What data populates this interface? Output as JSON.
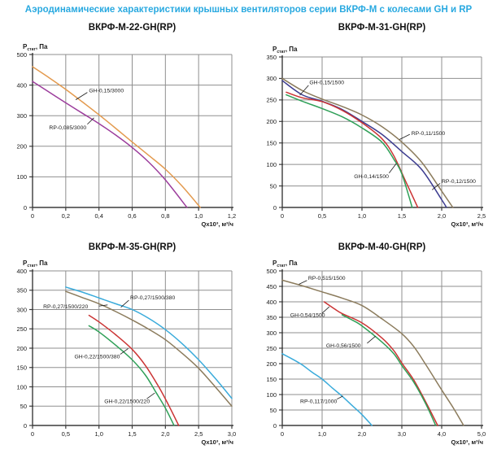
{
  "page": {
    "title": "Аэродинамические характеристики крышных вентиляторов серии ВКРФ-М с колесами GH и RP"
  },
  "colors": {
    "title_blue": "#29a9e0",
    "grid": "#8f8f8f",
    "axis": "#3c3c3c",
    "text": "#1a1a1a",
    "orange": "#e39a4e",
    "purple": "#9c3d9c",
    "brown": "#8b7b5c",
    "navy": "#3c3c90",
    "red": "#cb3434",
    "green": "#2fa058",
    "cyan": "#3aabdb"
  },
  "chart_data": [
    {
      "type": "line",
      "title": "ВКРФ-М-22-GH(RP)",
      "ylabel": "Рстат, Па",
      "ylabel_parts": {
        "main": "Р",
        "sub": "стат",
        "rest": ", Па"
      },
      "xlabel": "Qx10³, м³/ч",
      "xlim": [
        0,
        1.2
      ],
      "ylim": [
        0,
        500
      ],
      "grid": true,
      "xticks": [
        [
          0,
          "0"
        ],
        [
          0.2,
          "0,2"
        ],
        [
          0.4,
          "0,4"
        ],
        [
          0.6,
          "0,6"
        ],
        [
          0.8,
          "0,8"
        ],
        [
          1.0,
          "1,0"
        ],
        [
          1.2,
          "1,2"
        ]
      ],
      "yticks": [
        0,
        100,
        200,
        300,
        400,
        500
      ],
      "series": [
        {
          "name": "GH-0,15/3000",
          "color": "#e39a4e",
          "points": [
            [
              0,
              460
            ],
            [
              0.1,
              424
            ],
            [
              0.2,
              386
            ],
            [
              0.3,
              345
            ],
            [
              0.4,
              303
            ],
            [
              0.5,
              259
            ],
            [
              0.6,
              214
            ],
            [
              0.7,
              170
            ],
            [
              0.8,
              125
            ],
            [
              0.9,
              70
            ],
            [
              1.01,
              0
            ]
          ]
        },
        {
          "name": "RP-0,085/3000",
          "color": "#9c3d9c",
          "points": [
            [
              0,
              412
            ],
            [
              0.1,
              377
            ],
            [
              0.2,
              342
            ],
            [
              0.3,
              308
            ],
            [
              0.4,
              274
            ],
            [
              0.5,
              237
            ],
            [
              0.6,
              196
            ],
            [
              0.7,
              148
            ],
            [
              0.8,
              90
            ],
            [
              0.93,
              0
            ]
          ]
        }
      ],
      "annotations": [
        {
          "text": "GH-0,15/3000",
          "tx": 0.34,
          "ty": 383,
          "leader": [
            [
              0.33,
              376
            ],
            [
              0.26,
              352
            ]
          ]
        },
        {
          "text": "RP-0,085/3000",
          "tx": 0.1,
          "ty": 262,
          "leader": [
            [
              0.33,
              272
            ],
            [
              0.37,
              293
            ]
          ]
        }
      ]
    },
    {
      "type": "line",
      "title": "ВКРФ-М-31-GH(RP)",
      "ylabel": "Рстат, Па",
      "ylabel_parts": {
        "main": "Р",
        "sub": "стат",
        "rest": ", Па"
      },
      "xlabel": "Qx10³, м³/ч",
      "xlim": [
        0,
        2.5
      ],
      "ylim": [
        0,
        350
      ],
      "grid": true,
      "xticks": [
        [
          0,
          "0"
        ],
        [
          0.5,
          "0,5"
        ],
        [
          1.0,
          "1,0"
        ],
        [
          1.5,
          "1,5"
        ],
        [
          2.0,
          "2,0"
        ],
        [
          2.5,
          "2,5"
        ]
      ],
      "yticks": [
        0,
        50,
        100,
        150,
        200,
        250,
        300,
        350
      ],
      "series": [
        {
          "name": "RP-0,11/1500",
          "color": "#8b7b5c",
          "points": [
            [
              0,
              300
            ],
            [
              0.25,
              272
            ],
            [
              0.5,
              252
            ],
            [
              0.75,
              235
            ],
            [
              1.0,
              215
            ],
            [
              1.25,
              188
            ],
            [
              1.5,
              152
            ],
            [
              1.75,
              105
            ],
            [
              2.0,
              38
            ],
            [
              2.14,
              0
            ]
          ]
        },
        {
          "name": "RP-0,12/1500",
          "color": "#3c3c90",
          "points": [
            [
              0,
              295
            ],
            [
              0.25,
              262
            ],
            [
              0.5,
              247
            ],
            [
              0.75,
              228
            ],
            [
              1.0,
              200
            ],
            [
              1.25,
              170
            ],
            [
              1.5,
              130
            ],
            [
              1.75,
              88
            ],
            [
              2.0,
              18
            ],
            [
              2.06,
              0
            ]
          ]
        },
        {
          "name": "GH-0,15/1500",
          "color": "#cb3434",
          "points": [
            [
              0.05,
              268
            ],
            [
              0.25,
              255
            ],
            [
              0.5,
              246
            ],
            [
              0.75,
              226
            ],
            [
              1.0,
              197
            ],
            [
              1.25,
              160
            ],
            [
              1.4,
              120
            ],
            [
              1.55,
              60
            ],
            [
              1.7,
              0
            ]
          ]
        },
        {
          "name": "GH-0,14/1500",
          "color": "#2fa058",
          "points": [
            [
              0.05,
              262
            ],
            [
              0.25,
              247
            ],
            [
              0.5,
              230
            ],
            [
              0.75,
              211
            ],
            [
              1.0,
              185
            ],
            [
              1.25,
              152
            ],
            [
              1.4,
              112
            ],
            [
              1.5,
              78
            ],
            [
              1.63,
              0
            ]
          ]
        }
      ],
      "annotations": [
        {
          "text": "GH-0,15/1500",
          "tx": 0.34,
          "ty": 291,
          "leader": [
            [
              0.33,
              284
            ],
            [
              0.22,
              261
            ]
          ]
        },
        {
          "text": "RP-0,11/1500",
          "tx": 1.62,
          "ty": 173,
          "leader": [
            [
              1.6,
              170
            ],
            [
              1.47,
              158
            ]
          ]
        },
        {
          "text": "GH-0,14/1500",
          "tx": 0.9,
          "ty": 73,
          "leader": [
            [
              1.34,
              80
            ],
            [
              1.43,
              102
            ]
          ]
        },
        {
          "text": "RP-0,12/1500",
          "tx": 2.0,
          "ty": 61,
          "leader": [
            [
              1.98,
              56
            ],
            [
              1.88,
              41
            ]
          ]
        }
      ]
    },
    {
      "type": "line",
      "title": "ВКРФ-М-35-GH(RP)",
      "ylabel": "Рстат, Па",
      "ylabel_parts": {
        "main": "Р",
        "sub": "стат",
        "rest": ", Па"
      },
      "xlabel": "Qx10³, м³/ч",
      "xlim": [
        0,
        3.0
      ],
      "ylim": [
        0,
        400
      ],
      "grid": true,
      "xticks": [
        [
          0,
          "0"
        ],
        [
          0.5,
          "0,5"
        ],
        [
          1.0,
          "1,0"
        ],
        [
          1.5,
          "1,5"
        ],
        [
          2.0,
          "2,0"
        ],
        [
          2.5,
          "2,5"
        ],
        [
          3.0,
          "3,0"
        ]
      ],
      "yticks": [
        0,
        50,
        100,
        150,
        200,
        250,
        300,
        350,
        400
      ],
      "series": [
        {
          "name": "RP-0,27/1500/380",
          "color": "#3aabdb",
          "points": [
            [
              0.5,
              358
            ],
            [
              0.75,
              345
            ],
            [
              1.0,
              330
            ],
            [
              1.25,
              315
            ],
            [
              1.5,
              300
            ],
            [
              1.75,
              277
            ],
            [
              2.0,
              248
            ],
            [
              2.25,
              212
            ],
            [
              2.5,
              170
            ],
            [
              2.75,
              122
            ],
            [
              3.0,
              70
            ]
          ]
        },
        {
          "name": "RP-0,27/1500/220",
          "color": "#8b7b5c",
          "points": [
            [
              0.5,
              347
            ],
            [
              0.75,
              331
            ],
            [
              1.0,
              315
            ],
            [
              1.25,
              295
            ],
            [
              1.5,
              273
            ],
            [
              1.75,
              249
            ],
            [
              2.0,
              222
            ],
            [
              2.25,
              187
            ],
            [
              2.5,
              148
            ],
            [
              2.75,
              100
            ],
            [
              3.0,
              50
            ]
          ]
        },
        {
          "name": "GH-0,22/1500/380",
          "color": "#cb3434",
          "points": [
            [
              0.85,
              285
            ],
            [
              1.0,
              268
            ],
            [
              1.25,
              235
            ],
            [
              1.5,
              197
            ],
            [
              1.7,
              155
            ],
            [
              1.9,
              100
            ],
            [
              2.05,
              52
            ],
            [
              2.2,
              0
            ]
          ]
        },
        {
          "name": "GH-0,22/1500/220",
          "color": "#2fa058",
          "points": [
            [
              0.85,
              258
            ],
            [
              1.0,
              242
            ],
            [
              1.25,
              208
            ],
            [
              1.5,
              170
            ],
            [
              1.7,
              130
            ],
            [
              1.85,
              88
            ],
            [
              2.0,
              45
            ],
            [
              2.13,
              0
            ]
          ]
        }
      ],
      "annotations": [
        {
          "text": "RP-0,27/1500/220",
          "tx": 0.16,
          "ty": 308,
          "leader": [
            [
              1.0,
              309
            ],
            [
              1.13,
              312
            ]
          ]
        },
        {
          "text": "RP-0,27/1500/380",
          "tx": 1.47,
          "ty": 331,
          "leader": [
            [
              1.45,
              324
            ],
            [
              1.33,
              306
            ]
          ]
        },
        {
          "text": "GH-0,22/1500/380",
          "tx": 0.63,
          "ty": 179,
          "leader": [
            [
              1.32,
              184
            ],
            [
              1.44,
              199
            ]
          ]
        },
        {
          "text": "GH-0,22/1500/220",
          "tx": 1.08,
          "ty": 63,
          "leader": [
            [
              1.72,
              69
            ],
            [
              1.84,
              84
            ]
          ]
        }
      ]
    },
    {
      "type": "line",
      "title": "ВКРФ-М-40-GH(RP)",
      "ylabel": "Рстат, Па",
      "ylabel_parts": {
        "main": "Р",
        "sub": "стат",
        "rest": ", Па"
      },
      "xlabel": "Qx10³, м³/ч",
      "xlim": [
        0,
        5.0
      ],
      "ylim": [
        0,
        500
      ],
      "grid": true,
      "xticks": [
        [
          0,
          "0"
        ],
        [
          1.0,
          "1,0"
        ],
        [
          2.0,
          "2,0"
        ],
        [
          3.0,
          "3,0"
        ],
        [
          4.0,
          "4,0"
        ],
        [
          5.0,
          "5,0"
        ]
      ],
      "yticks": [
        0,
        50,
        100,
        150,
        200,
        250,
        300,
        350,
        400,
        450,
        500
      ],
      "series": [
        {
          "name": "RP-0,515/1500",
          "color": "#8b7b5c",
          "points": [
            [
              0,
              470
            ],
            [
              0.5,
              452
            ],
            [
              1.0,
              432
            ],
            [
              1.5,
              412
            ],
            [
              2.0,
              388
            ],
            [
              2.5,
              345
            ],
            [
              3.0,
              297
            ],
            [
              3.3,
              255
            ],
            [
              3.6,
              197
            ],
            [
              4.0,
              115
            ],
            [
              4.3,
              55
            ],
            [
              4.55,
              0
            ]
          ]
        },
        {
          "name": "GH-0,54/1500",
          "color": "#cb3434",
          "points": [
            [
              1.05,
              400
            ],
            [
              1.3,
              378
            ],
            [
              1.5,
              362
            ],
            [
              2.0,
              332
            ],
            [
              2.5,
              283
            ],
            [
              2.8,
              242
            ],
            [
              3.0,
              202
            ],
            [
              3.3,
              147
            ],
            [
              3.6,
              76
            ],
            [
              3.9,
              0
            ]
          ]
        },
        {
          "name": "GH-0,56/1500",
          "color": "#2fa058",
          "points": [
            [
              1.5,
              358
            ],
            [
              1.8,
              338
            ],
            [
              2.0,
              322
            ],
            [
              2.5,
              270
            ],
            [
              2.8,
              232
            ],
            [
              3.0,
              194
            ],
            [
              3.3,
              140
            ],
            [
              3.6,
              70
            ],
            [
              3.85,
              0
            ]
          ]
        },
        {
          "name": "RP-0,117/1000",
          "color": "#3aabdb",
          "points": [
            [
              0,
              232
            ],
            [
              0.25,
              215
            ],
            [
              0.5,
              196
            ],
            [
              0.75,
              172
            ],
            [
              1.0,
              150
            ],
            [
              1.25,
              122
            ],
            [
              1.5,
              95
            ],
            [
              1.75,
              65
            ],
            [
              2.0,
              35
            ],
            [
              2.25,
              0
            ]
          ]
        }
      ],
      "annotations": [
        {
          "text": "RP-0,515/1500",
          "tx": 0.65,
          "ty": 477,
          "leader": [
            [
              0.62,
              469
            ],
            [
              0.42,
              457
            ]
          ]
        },
        {
          "text": "GH-0,54/1500",
          "tx": 0.2,
          "ty": 358,
          "leader": [
            [
              1.0,
              363
            ],
            [
              1.18,
              384
            ]
          ]
        },
        {
          "text": "GH-0,56/1500",
          "tx": 1.1,
          "ty": 259,
          "leader": [
            [
              2.13,
              266
            ],
            [
              2.34,
              289
            ]
          ]
        },
        {
          "text": "RP-0,117/1000",
          "tx": 0.45,
          "ty": 79,
          "leader": [
            [
              1.37,
              85
            ],
            [
              1.52,
              95
            ]
          ]
        }
      ]
    }
  ]
}
